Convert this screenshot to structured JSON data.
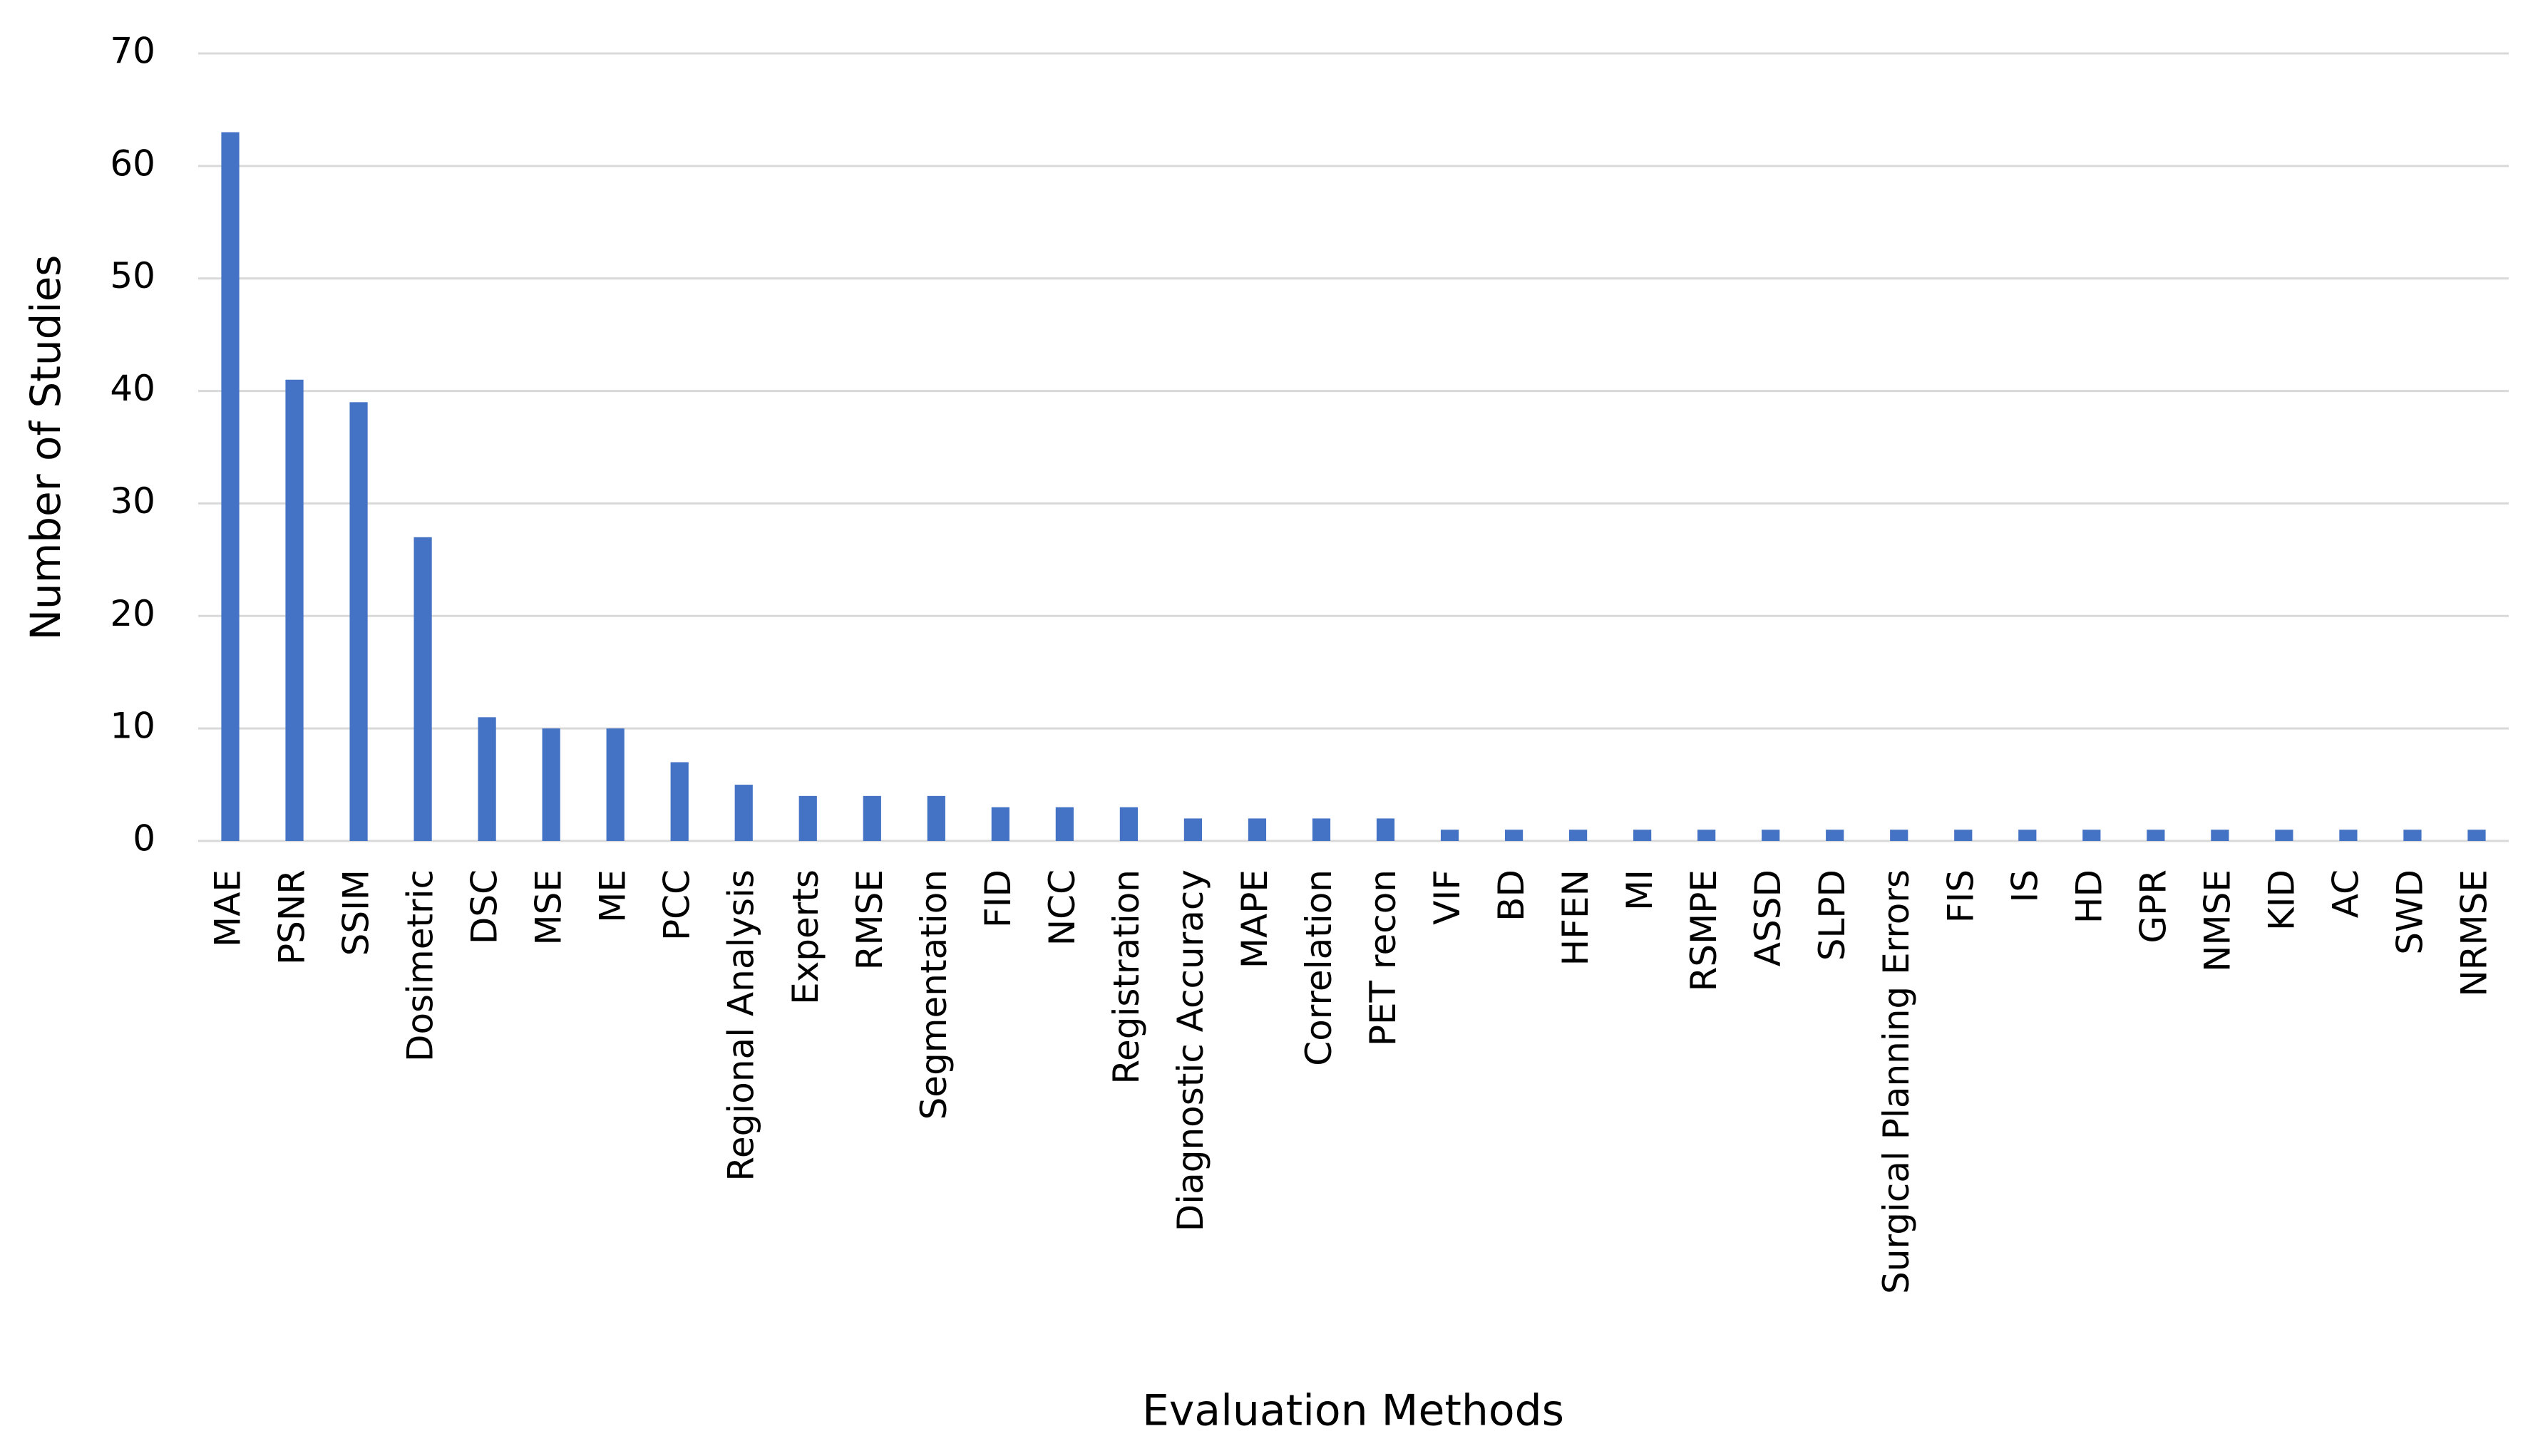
{
  "chart_data": {
    "type": "bar",
    "x_label": "Evaluation Methods",
    "y_label": "Number of Studies",
    "categories": [
      "MAE",
      "PSNR",
      "SSIM",
      "Dosimetric",
      "DSC",
      "MSE",
      "ME",
      "PCC",
      "Regional Analysis",
      "Experts",
      "RMSE",
      "Segmentation",
      "FID",
      "NCC",
      "Registration",
      "Diagnostic Accuracy",
      "MAPE",
      "Correlation",
      "PET recon",
      "VIF",
      "BD",
      "HFEN",
      "MI",
      "RSMPE",
      "ASSD",
      "SLPD",
      "Surgical Planning Errors",
      "FIS",
      "IS",
      "HD",
      "GPR",
      "NMSE",
      "KID",
      "AC",
      "SWD",
      "NRMSE"
    ],
    "values": [
      63,
      41,
      39,
      27,
      11,
      10,
      10,
      7,
      5,
      4,
      4,
      4,
      3,
      3,
      3,
      2,
      2,
      2,
      2,
      1,
      1,
      1,
      1,
      1,
      1,
      1,
      1,
      1,
      1,
      1,
      1,
      1,
      1,
      1,
      1,
      1
    ],
    "color": "#4472c4",
    "ylim": [
      0,
      70
    ],
    "yticks": [
      0,
      10,
      20,
      30,
      40,
      50,
      60,
      70
    ],
    "grid": true
  }
}
